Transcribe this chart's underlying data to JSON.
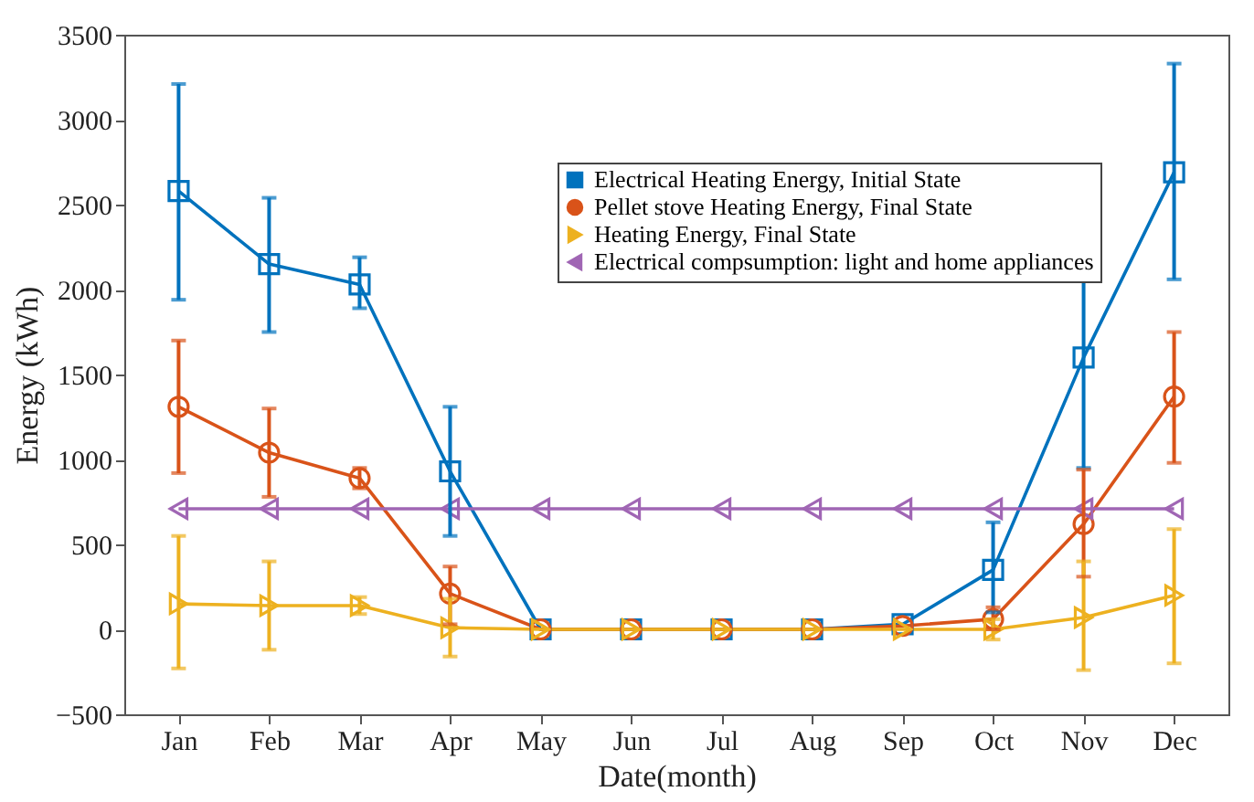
{
  "chart_data": {
    "type": "line",
    "xlabel": "Date(month)",
    "ylabel": "Energy (kWh)",
    "categories": [
      "Jan",
      "Feb",
      "Mar",
      "Apr",
      "May",
      "Jun",
      "Jul",
      "Aug",
      "Sep",
      "Oct",
      "Nov",
      "Dec"
    ],
    "ylim": [
      -500,
      3500
    ],
    "yticks": [
      -500,
      0,
      500,
      1000,
      1500,
      2000,
      2500,
      3000,
      3500
    ],
    "grid": false,
    "legend": "top right",
    "series": [
      {
        "name": "Electrical Heating Energy, Initial State",
        "color": "#0072bd",
        "marker": "square",
        "values": [
          2580,
          2150,
          2030,
          930,
          0,
          0,
          0,
          0,
          30,
          350,
          1600,
          2690
        ],
        "errors": [
          [
            1940,
            3210
          ],
          [
            1750,
            2540
          ],
          [
            1890,
            2190
          ],
          [
            550,
            1310
          ],
          null,
          null,
          null,
          null,
          null,
          [
            100,
            630
          ],
          [
            950,
            2090
          ],
          [
            2060,
            3330
          ]
        ]
      },
      {
        "name": "Pellet stove Heating Energy, Final State",
        "color": "#d95319",
        "marker": "circle",
        "values": [
          1310,
          1040,
          890,
          210,
          0,
          0,
          0,
          0,
          20,
          60,
          620,
          1370
        ],
        "errors": [
          [
            920,
            1700
          ],
          [
            780,
            1300
          ],
          [
            830,
            950
          ],
          [
            30,
            370
          ],
          null,
          null,
          null,
          null,
          null,
          [
            0,
            130
          ],
          [
            310,
            940
          ],
          [
            980,
            1750
          ]
        ]
      },
      {
        "name": "Heating Energy, Final State",
        "color": "#edb120",
        "marker": "triangle-right",
        "values": [
          150,
          140,
          140,
          10,
          0,
          0,
          0,
          0,
          0,
          0,
          70,
          200
        ],
        "errors": [
          [
            -230,
            550
          ],
          [
            -120,
            400
          ],
          [
            90,
            190
          ],
          [
            -160,
            180
          ],
          null,
          null,
          null,
          null,
          null,
          [
            -60,
            60
          ],
          [
            -240,
            400
          ],
          [
            -200,
            590
          ]
        ]
      },
      {
        "name": "Electrical compsumption: light and home appliances",
        "color": "#a066b4",
        "marker": "triangle-left",
        "values": [
          710,
          710,
          710,
          710,
          710,
          710,
          710,
          710,
          710,
          710,
          710,
          710
        ]
      }
    ]
  }
}
